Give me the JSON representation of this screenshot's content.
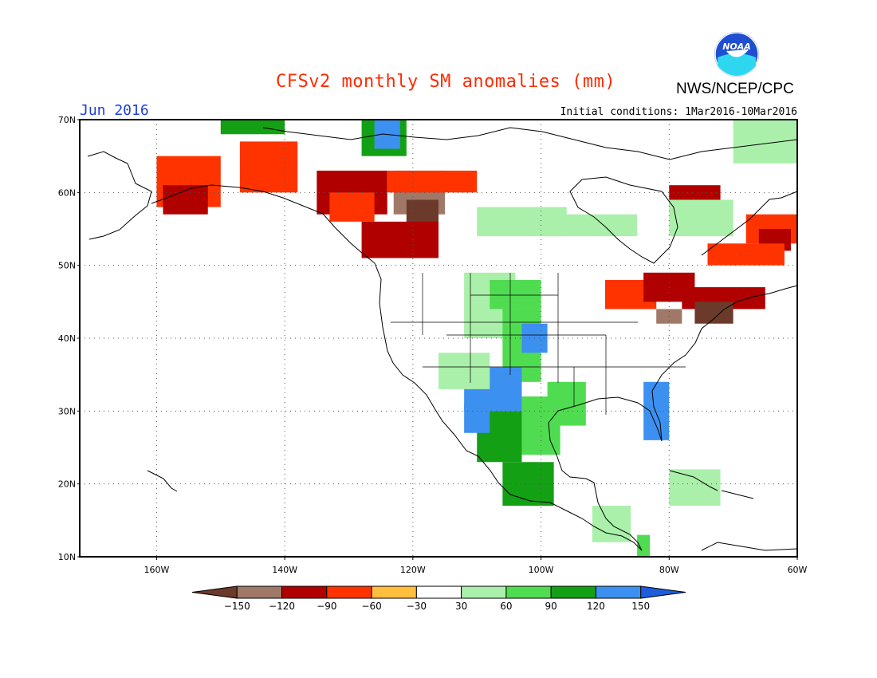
{
  "title": "CFSv2 monthly SM anomalies (mm)",
  "month_label": "Jun 2016",
  "initial_conditions": "Initial conditions: 1Mar2016-10Mar2016",
  "agency": "NWS/NCEP/CPC",
  "logo_text": "NOAA",
  "map": {
    "lon_range": [
      -172,
      -60
    ],
    "lat_range": [
      10,
      70
    ],
    "lat_ticks": [
      {
        "v": 70,
        "label": "70N"
      },
      {
        "v": 60,
        "label": "60N"
      },
      {
        "v": 50,
        "label": "50N"
      },
      {
        "v": 40,
        "label": "40N"
      },
      {
        "v": 30,
        "label": "30N"
      },
      {
        "v": 20,
        "label": "20N"
      },
      {
        "v": 10,
        "label": "10N"
      }
    ],
    "lon_ticks": [
      {
        "v": -160,
        "label": "160W"
      },
      {
        "v": -140,
        "label": "140W"
      },
      {
        "v": -120,
        "label": "120W"
      },
      {
        "v": -100,
        "label": "100W"
      },
      {
        "v": -80,
        "label": "80W"
      },
      {
        "v": -60,
        "label": "60W"
      }
    ],
    "grid": true
  },
  "colorbar": {
    "colors": [
      "#6b3a2a",
      "#a07868",
      "#b00000",
      "#ff3300",
      "#ffbe3c",
      "#ffffff",
      "#aaf0aa",
      "#50dc50",
      "#14a014",
      "#3c90f0",
      "#1e5cdc"
    ],
    "labels": [
      "−150",
      "−120",
      "−90",
      "−60",
      "−30",
      "30",
      "60",
      "90",
      "120",
      "150"
    ]
  },
  "anomaly_regions": [
    {
      "lon": [
        -160,
        -150
      ],
      "lat": [
        58,
        65
      ],
      "level": "-60"
    },
    {
      "lon": [
        -159,
        -152
      ],
      "lat": [
        57,
        61
      ],
      "level": "-90"
    },
    {
      "lon": [
        -147,
        -138
      ],
      "lat": [
        60,
        67
      ],
      "level": "-60"
    },
    {
      "lon": [
        -135,
        -124
      ],
      "lat": [
        57,
        63
      ],
      "level": "-90"
    },
    {
      "lon": [
        -133,
        -126
      ],
      "lat": [
        56,
        60
      ],
      "level": "-60"
    },
    {
      "lon": [
        -123,
        -115
      ],
      "lat": [
        57,
        63
      ],
      "level": "-120"
    },
    {
      "lon": [
        -121,
        -116
      ],
      "lat": [
        55,
        59
      ],
      "level": "-150"
    },
    {
      "lon": [
        -128,
        -116
      ],
      "lat": [
        51,
        56
      ],
      "level": "-90"
    },
    {
      "lon": [
        -124,
        -110
      ],
      "lat": [
        60,
        63
      ],
      "level": "-60"
    },
    {
      "lon": [
        -128,
        -121
      ],
      "lat": [
        65,
        70
      ],
      "level": "120"
    },
    {
      "lon": [
        -126,
        -122
      ],
      "lat": [
        66,
        70
      ],
      "level": "150"
    },
    {
      "lon": [
        -150,
        -140
      ],
      "lat": [
        68,
        70
      ],
      "level": "120"
    },
    {
      "lon": [
        -110,
        -96
      ],
      "lat": [
        54,
        58
      ],
      "level": "60"
    },
    {
      "lon": [
        -100,
        -85
      ],
      "lat": [
        54,
        57
      ],
      "level": "60"
    },
    {
      "lon": [
        -112,
        -104
      ],
      "lat": [
        40,
        49
      ],
      "level": "60"
    },
    {
      "lon": [
        -108,
        -100
      ],
      "lat": [
        44,
        48
      ],
      "level": "90"
    },
    {
      "lon": [
        -106,
        -100
      ],
      "lat": [
        34,
        44
      ],
      "level": "90"
    },
    {
      "lon": [
        -103,
        -99
      ],
      "lat": [
        38,
        42
      ],
      "level": "150"
    },
    {
      "lon": [
        -112,
        -103
      ],
      "lat": [
        30,
        36
      ],
      "level": "150"
    },
    {
      "lon": [
        -110,
        -103
      ],
      "lat": [
        23,
        30
      ],
      "level": "120"
    },
    {
      "lon": [
        -116,
        -108
      ],
      "lat": [
        33,
        38
      ],
      "level": "60"
    },
    {
      "lon": [
        -103,
        -97
      ],
      "lat": [
        24,
        32
      ],
      "level": "90"
    },
    {
      "lon": [
        -106,
        -98
      ],
      "lat": [
        17,
        23
      ],
      "level": "120"
    },
    {
      "lon": [
        -112,
        -108
      ],
      "lat": [
        27,
        31
      ],
      "level": "150"
    },
    {
      "lon": [
        -99,
        -93
      ],
      "lat": [
        28,
        34
      ],
      "level": "90"
    },
    {
      "lon": [
        -84,
        -80
      ],
      "lat": [
        26,
        34
      ],
      "level": "150"
    },
    {
      "lon": [
        -92,
        -86
      ],
      "lat": [
        12,
        17
      ],
      "level": "60"
    },
    {
      "lon": [
        -85,
        -83
      ],
      "lat": [
        10,
        13
      ],
      "level": "90"
    },
    {
      "lon": [
        -90,
        -82
      ],
      "lat": [
        44,
        48
      ],
      "level": "-60"
    },
    {
      "lon": [
        -84,
        -76
      ],
      "lat": [
        45,
        49
      ],
      "level": "-90"
    },
    {
      "lon": [
        -78,
        -65
      ],
      "lat": [
        44,
        47
      ],
      "level": "-90"
    },
    {
      "lon": [
        -76,
        -70
      ],
      "lat": [
        42,
        45
      ],
      "level": "-150"
    },
    {
      "lon": [
        -82,
        -78
      ],
      "lat": [
        42,
        44
      ],
      "level": "-120"
    },
    {
      "lon": [
        -80,
        -72
      ],
      "lat": [
        58,
        61
      ],
      "level": "-90"
    },
    {
      "lon": [
        -68,
        -60
      ],
      "lat": [
        53,
        57
      ],
      "level": "-60"
    },
    {
      "lon": [
        -66,
        -61
      ],
      "lat": [
        52,
        55
      ],
      "level": "-90"
    },
    {
      "lon": [
        -74,
        -62
      ],
      "lat": [
        50,
        53
      ],
      "level": "-60"
    },
    {
      "lon": [
        -80,
        -70
      ],
      "lat": [
        54,
        59
      ],
      "level": "60"
    },
    {
      "lon": [
        -70,
        -60
      ],
      "lat": [
        64,
        70
      ],
      "level": "60"
    },
    {
      "lon": [
        -80,
        -72
      ],
      "lat": [
        17,
        22
      ],
      "level": "60"
    }
  ]
}
